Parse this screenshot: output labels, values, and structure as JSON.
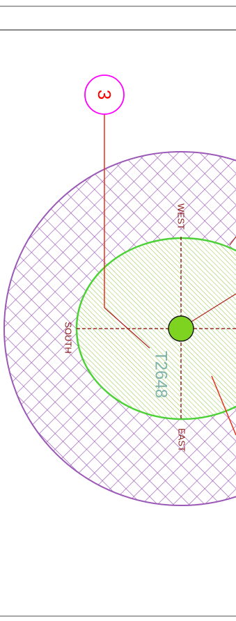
{
  "drawing": {
    "tree_tag": "T2648",
    "callout_number": "3",
    "directions": {
      "west": "WEST",
      "south": "SOUTH",
      "east": "EAST"
    }
  },
  "colors": {
    "outer_zone_hatch": "#9b59b6",
    "inner_zone_hatch": "#8dc63f",
    "inner_zone_outline": "#4cd137",
    "trunk_fill": "#7ed321",
    "axis_line": "#8b0000",
    "callout_circle": "#ff00ff",
    "callout_text": "#ff0000",
    "leader_line": "#e8301a",
    "tag_text": "#7fb3a8",
    "direction_text": "#8b1a1a",
    "frame_line": "#888888"
  }
}
